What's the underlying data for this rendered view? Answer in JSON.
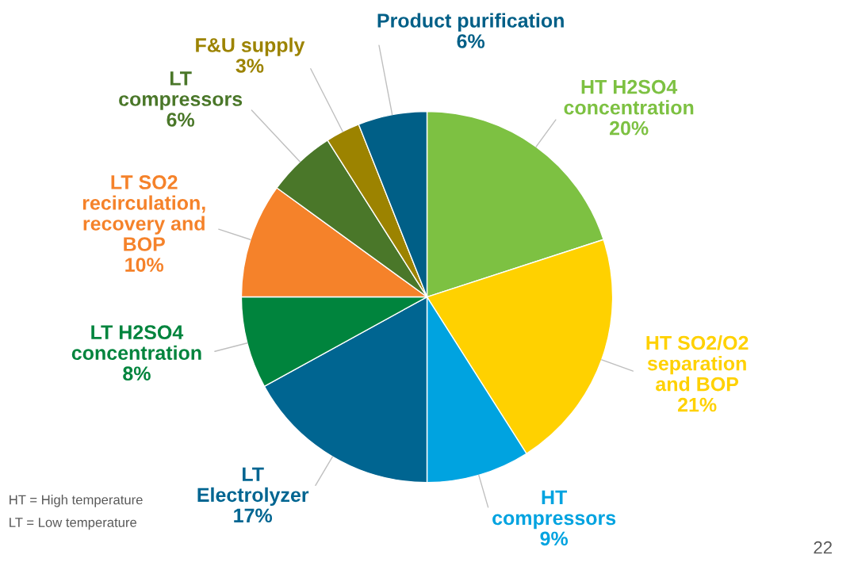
{
  "chart_data": {
    "type": "pie",
    "categories": [
      "HT H2SO4\nconcentration",
      "HT SO2/O2\nseparation\nand BOP",
      "HT\ncompressors",
      "LT\nElectrolyzer",
      "LT H2SO4\nconcentration",
      "LT SO2\nrecirculation,\nrecovery and\nBOP",
      "LT\ncompressors",
      "F&U supply",
      "Product purification"
    ],
    "values": [
      20,
      21,
      9,
      17,
      8,
      10,
      6,
      3,
      6
    ],
    "value_labels": [
      "20%",
      "21%",
      "9%",
      "17%",
      "8%",
      "10%",
      "6%",
      "3%",
      "6%"
    ],
    "colors": [
      "#7dc142",
      "#ffd100",
      "#00a3e0",
      "#006591",
      "#00843d",
      "#f5822a",
      "#4a7729",
      "#9c8300",
      "#005f87"
    ],
    "annotations": [
      "HT = High temperature",
      "LT = Low temperature",
      "22"
    ],
    "legend": false
  }
}
